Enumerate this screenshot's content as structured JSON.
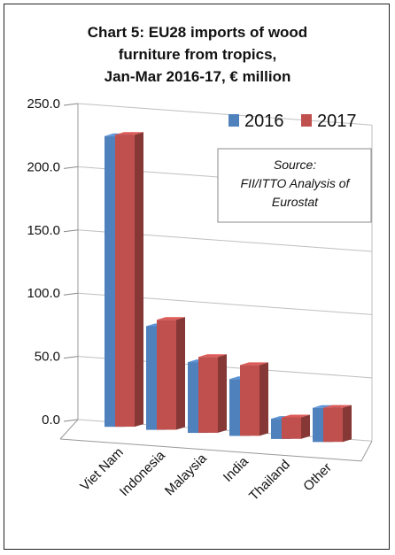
{
  "chart_data": {
    "type": "bar",
    "title_lines": [
      "Chart 5: EU28 imports of wood",
      "furniture from tropics,",
      "Jan-Mar 2016-17, € million"
    ],
    "categories": [
      "Viet Nam",
      "Indonesia",
      "Malaysia",
      "India",
      "Thailand",
      "Other"
    ],
    "series": [
      {
        "name": "2016",
        "values": [
          230.0,
          82.0,
          56.0,
          45.0,
          16.0,
          27.0
        ],
        "color": "#4f81bd"
      },
      {
        "name": "2017",
        "values": [
          231.0,
          87.0,
          60.0,
          56.0,
          17.0,
          27.0
        ],
        "color": "#c0504d"
      }
    ],
    "y_ticks": [
      "0.0",
      "50.0",
      "100.0",
      "150.0",
      "200.0",
      "250.0"
    ],
    "ylim": [
      0,
      250
    ],
    "grid": true,
    "legend_position": "top-right",
    "annotation_lines": [
      "Source:",
      "FII/ITTO Analysis of",
      "Eurostat"
    ]
  }
}
